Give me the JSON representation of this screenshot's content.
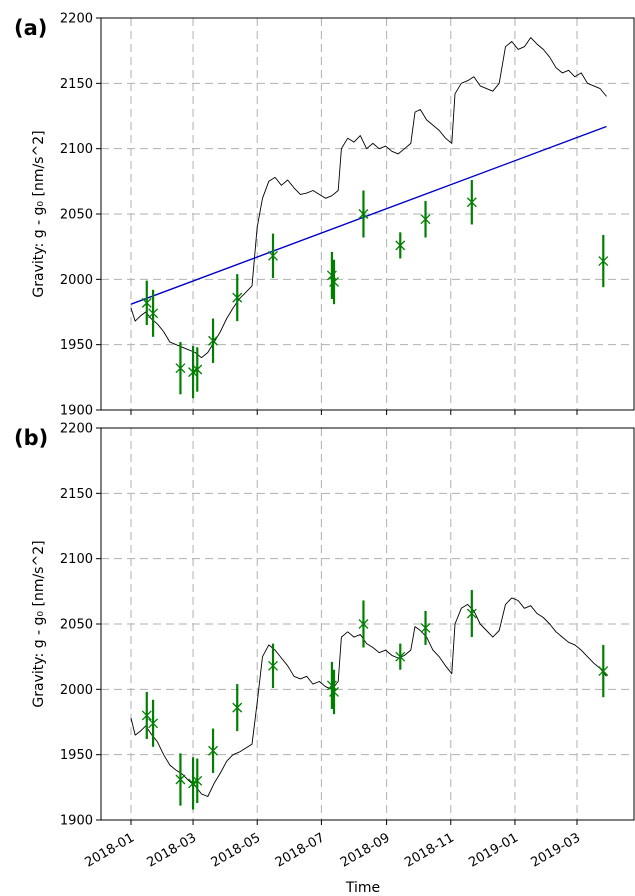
{
  "chart_data": [
    {
      "type": "line",
      "panel_label": "(a)",
      "title": "",
      "ylabel": "Gravity: g - g₀ [nm/s^2]",
      "xlabel": "",
      "xlim": [
        "2018-01-01",
        "2019-04-15"
      ],
      "ylim": [
        1900,
        2200
      ],
      "yticks": [
        "1900",
        "1950",
        "2000",
        "2050",
        "2100",
        "2150",
        "2200"
      ],
      "xticks": [
        "2018-01",
        "2018-03",
        "2018-05",
        "2018-07",
        "2018-09",
        "2018-11",
        "2019-01",
        "2019-03"
      ],
      "grid": true,
      "series": [
        {
          "kind": "line",
          "color": "#000000",
          "points": [
            [
              "2018-01-01",
              1978
            ],
            [
              "2018-01-05",
              1968
            ],
            [
              "2018-01-10",
              1972
            ],
            [
              "2018-01-15",
              1975
            ],
            [
              "2018-01-20",
              1970
            ],
            [
              "2018-01-26",
              1966
            ],
            [
              "2018-02-01",
              1960
            ],
            [
              "2018-02-07",
              1952
            ],
            [
              "2018-02-13",
              1950
            ],
            [
              "2018-02-19",
              1948
            ],
            [
              "2018-02-25",
              1946
            ],
            [
              "2018-03-03",
              1944
            ],
            [
              "2018-03-09",
              1940
            ],
            [
              "2018-03-15",
              1944
            ],
            [
              "2018-03-21",
              1952
            ],
            [
              "2018-03-27",
              1960
            ],
            [
              "2018-04-02",
              1970
            ],
            [
              "2018-04-08",
              1978
            ],
            [
              "2018-04-14",
              1985
            ],
            [
              "2018-04-20",
              1990
            ],
            [
              "2018-04-26",
              1995
            ],
            [
              "2018-05-01",
              2040
            ],
            [
              "2018-05-06",
              2062
            ],
            [
              "2018-05-12",
              2075
            ],
            [
              "2018-05-18",
              2078
            ],
            [
              "2018-05-24",
              2072
            ],
            [
              "2018-05-30",
              2076
            ],
            [
              "2018-06-05",
              2070
            ],
            [
              "2018-06-11",
              2065
            ],
            [
              "2018-06-17",
              2066
            ],
            [
              "2018-06-23",
              2068
            ],
            [
              "2018-06-29",
              2065
            ],
            [
              "2018-07-05",
              2062
            ],
            [
              "2018-07-11",
              2064
            ],
            [
              "2018-07-17",
              2068
            ],
            [
              "2018-07-20",
              2100
            ],
            [
              "2018-07-26",
              2108
            ],
            [
              "2018-08-01",
              2105
            ],
            [
              "2018-08-07",
              2110
            ],
            [
              "2018-08-13",
              2100
            ],
            [
              "2018-08-19",
              2104
            ],
            [
              "2018-08-25",
              2100
            ],
            [
              "2018-08-31",
              2102
            ],
            [
              "2018-09-06",
              2098
            ],
            [
              "2018-09-12",
              2096
            ],
            [
              "2018-09-18",
              2100
            ],
            [
              "2018-09-24",
              2104
            ],
            [
              "2018-09-28",
              2128
            ],
            [
              "2018-10-03",
              2130
            ],
            [
              "2018-10-09",
              2122
            ],
            [
              "2018-10-15",
              2118
            ],
            [
              "2018-10-21",
              2114
            ],
            [
              "2018-10-27",
              2108
            ],
            [
              "2018-11-02",
              2104
            ],
            [
              "2018-11-05",
              2142
            ],
            [
              "2018-11-11",
              2150
            ],
            [
              "2018-11-17",
              2152
            ],
            [
              "2018-11-23",
              2155
            ],
            [
              "2018-11-29",
              2148
            ],
            [
              "2018-12-05",
              2146
            ],
            [
              "2018-12-11",
              2144
            ],
            [
              "2018-12-17",
              2150
            ],
            [
              "2018-12-23",
              2178
            ],
            [
              "2018-12-29",
              2182
            ],
            [
              "2019-01-04",
              2176
            ],
            [
              "2019-01-10",
              2178
            ],
            [
              "2019-01-16",
              2185
            ],
            [
              "2019-01-22",
              2180
            ],
            [
              "2019-01-28",
              2176
            ],
            [
              "2019-02-03",
              2170
            ],
            [
              "2019-02-09",
              2162
            ],
            [
              "2019-02-15",
              2158
            ],
            [
              "2019-02-21",
              2160
            ],
            [
              "2019-02-27",
              2155
            ],
            [
              "2019-03-05",
              2158
            ],
            [
              "2019-03-11",
              2150
            ],
            [
              "2019-03-17",
              2148
            ],
            [
              "2019-03-23",
              2146
            ],
            [
              "2019-03-29",
              2140
            ]
          ]
        },
        {
          "kind": "trend",
          "color": "#0000cc",
          "points": [
            [
              "2018-01-01",
              1981
            ],
            [
              "2019-03-29",
              2117
            ]
          ]
        },
        {
          "kind": "errorbar",
          "color": "#007f00",
          "points": [
            {
              "x": "2018-01-16",
              "y": 1982,
              "err": 17
            },
            {
              "x": "2018-01-22",
              "y": 1974,
              "err": 18
            },
            {
              "x": "2018-02-17",
              "y": 1932,
              "err": 20
            },
            {
              "x": "2018-03-01",
              "y": 1929,
              "err": 20
            },
            {
              "x": "2018-03-05",
              "y": 1931,
              "err": 17
            },
            {
              "x": "2018-03-20",
              "y": 1953,
              "err": 17
            },
            {
              "x": "2018-04-12",
              "y": 1986,
              "err": 18
            },
            {
              "x": "2018-05-16",
              "y": 2018,
              "err": 17
            },
            {
              "x": "2018-07-11",
              "y": 2003,
              "err": 18
            },
            {
              "x": "2018-07-13",
              "y": 1998,
              "err": 17
            },
            {
              "x": "2018-08-10",
              "y": 2050,
              "err": 18
            },
            {
              "x": "2018-09-14",
              "y": 2026,
              "err": 10
            },
            {
              "x": "2018-10-08",
              "y": 2046,
              "err": 14
            },
            {
              "x": "2018-11-21",
              "y": 2059,
              "err": 17
            },
            {
              "x": "2019-03-26",
              "y": 2014,
              "err": 20
            }
          ]
        }
      ]
    },
    {
      "type": "line",
      "panel_label": "(b)",
      "title": "",
      "ylabel": "Gravity: g - g₀ [nm/s^2]",
      "xlabel": "Time",
      "xlim": [
        "2018-01-01",
        "2019-04-15"
      ],
      "ylim": [
        1900,
        2200
      ],
      "yticks": [
        "1900",
        "1950",
        "2000",
        "2050",
        "2100",
        "2150",
        "2200"
      ],
      "xticks": [
        "2018-01",
        "2018-03",
        "2018-05",
        "2018-07",
        "2018-09",
        "2018-11",
        "2019-01",
        "2019-03"
      ],
      "grid": true,
      "series": [
        {
          "kind": "line",
          "color": "#000000",
          "points": [
            [
              "2018-01-01",
              1978
            ],
            [
              "2018-01-05",
              1965
            ],
            [
              "2018-01-10",
              1968
            ],
            [
              "2018-01-15",
              1972
            ],
            [
              "2018-01-20",
              1966
            ],
            [
              "2018-01-26",
              1960
            ],
            [
              "2018-02-01",
              1950
            ],
            [
              "2018-02-07",
              1942
            ],
            [
              "2018-02-13",
              1938
            ],
            [
              "2018-02-19",
              1935
            ],
            [
              "2018-02-25",
              1930
            ],
            [
              "2018-03-03",
              1926
            ],
            [
              "2018-03-09",
              1920
            ],
            [
              "2018-03-15",
              1918
            ],
            [
              "2018-03-21",
              1928
            ],
            [
              "2018-03-27",
              1936
            ],
            [
              "2018-04-02",
              1945
            ],
            [
              "2018-04-08",
              1950
            ],
            [
              "2018-04-14",
              1952
            ],
            [
              "2018-04-20",
              1955
            ],
            [
              "2018-04-26",
              1958
            ],
            [
              "2018-05-01",
              1990
            ],
            [
              "2018-05-06",
              2025
            ],
            [
              "2018-05-12",
              2034
            ],
            [
              "2018-05-18",
              2030
            ],
            [
              "2018-05-24",
              2024
            ],
            [
              "2018-05-30",
              2018
            ],
            [
              "2018-06-05",
              2010
            ],
            [
              "2018-06-11",
              2008
            ],
            [
              "2018-06-17",
              2010
            ],
            [
              "2018-06-23",
              2004
            ],
            [
              "2018-06-29",
              2006
            ],
            [
              "2018-07-05",
              2002
            ],
            [
              "2018-07-11",
              2000
            ],
            [
              "2018-07-17",
              2006
            ],
            [
              "2018-07-20",
              2040
            ],
            [
              "2018-07-26",
              2044
            ],
            [
              "2018-08-01",
              2040
            ],
            [
              "2018-08-07",
              2042
            ],
            [
              "2018-08-13",
              2035
            ],
            [
              "2018-08-19",
              2032
            ],
            [
              "2018-08-25",
              2028
            ],
            [
              "2018-08-31",
              2030
            ],
            [
              "2018-09-06",
              2026
            ],
            [
              "2018-09-12",
              2024
            ],
            [
              "2018-09-18",
              2026
            ],
            [
              "2018-09-24",
              2030
            ],
            [
              "2018-09-28",
              2048
            ],
            [
              "2018-10-03",
              2045
            ],
            [
              "2018-10-09",
              2040
            ],
            [
              "2018-10-15",
              2030
            ],
            [
              "2018-10-21",
              2025
            ],
            [
              "2018-10-27",
              2018
            ],
            [
              "2018-11-02",
              2012
            ],
            [
              "2018-11-05",
              2050
            ],
            [
              "2018-11-11",
              2062
            ],
            [
              "2018-11-17",
              2065
            ],
            [
              "2018-11-23",
              2060
            ],
            [
              "2018-11-29",
              2050
            ],
            [
              "2018-12-05",
              2045
            ],
            [
              "2018-12-11",
              2040
            ],
            [
              "2018-12-17",
              2045
            ],
            [
              "2018-12-23",
              2065
            ],
            [
              "2018-12-29",
              2070
            ],
            [
              "2019-01-04",
              2068
            ],
            [
              "2019-01-10",
              2062
            ],
            [
              "2019-01-16",
              2064
            ],
            [
              "2019-01-22",
              2058
            ],
            [
              "2019-01-28",
              2055
            ],
            [
              "2019-02-03",
              2050
            ],
            [
              "2019-02-09",
              2044
            ],
            [
              "2019-02-15",
              2040
            ],
            [
              "2019-02-21",
              2036
            ],
            [
              "2019-02-27",
              2034
            ],
            [
              "2019-03-05",
              2030
            ],
            [
              "2019-03-11",
              2025
            ],
            [
              "2019-03-17",
              2020
            ],
            [
              "2019-03-23",
              2016
            ],
            [
              "2019-03-29",
              2010
            ]
          ]
        },
        {
          "kind": "errorbar",
          "color": "#007f00",
          "points": [
            {
              "x": "2018-01-16",
              "y": 1980,
              "err": 18
            },
            {
              "x": "2018-01-22",
              "y": 1974,
              "err": 18
            },
            {
              "x": "2018-02-17",
              "y": 1931,
              "err": 20
            },
            {
              "x": "2018-03-01",
              "y": 1928,
              "err": 20
            },
            {
              "x": "2018-03-05",
              "y": 1930,
              "err": 17
            },
            {
              "x": "2018-03-20",
              "y": 1953,
              "err": 17
            },
            {
              "x": "2018-04-12",
              "y": 1986,
              "err": 18
            },
            {
              "x": "2018-05-16",
              "y": 2018,
              "err": 17
            },
            {
              "x": "2018-07-11",
              "y": 2003,
              "err": 18
            },
            {
              "x": "2018-07-13",
              "y": 1998,
              "err": 17
            },
            {
              "x": "2018-08-10",
              "y": 2050,
              "err": 18
            },
            {
              "x": "2018-09-14",
              "y": 2025,
              "err": 10
            },
            {
              "x": "2018-10-08",
              "y": 2047,
              "err": 13
            },
            {
              "x": "2018-11-21",
              "y": 2058,
              "err": 18
            },
            {
              "x": "2019-03-26",
              "y": 2014,
              "err": 20
            }
          ]
        }
      ]
    }
  ]
}
